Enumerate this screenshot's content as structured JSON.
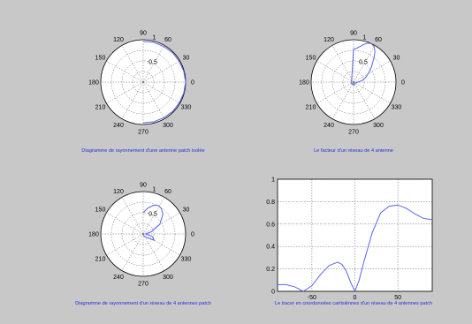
{
  "window": {
    "background": "#c8c8c8"
  },
  "colors": {
    "curve": "#5a64ee",
    "caption": "#1f2fd6",
    "grid": "#666666",
    "axes": "#000000"
  },
  "chart_data": [
    {
      "type": "polar",
      "title": "Diagramme de rayonnement d'une antenne patch isolée",
      "angle_ticks": [
        "0",
        "30",
        "60",
        "90",
        "120",
        "150",
        "180",
        "210",
        "240",
        "270",
        "300",
        "330"
      ],
      "radius_ticks": [
        "0.5",
        "1"
      ],
      "rlim": [
        0,
        1
      ],
      "series": [
        {
          "angles_deg": [
            -90,
            -75,
            -60,
            -45,
            -30,
            -15,
            0,
            15,
            30,
            45,
            60,
            75,
            90
          ],
          "r": [
            0.96,
            0.97,
            0.97,
            0.98,
            0.98,
            0.99,
            1.0,
            0.99,
            0.98,
            0.98,
            0.97,
            0.97,
            0.96
          ]
        }
      ]
    },
    {
      "type": "polar",
      "title": "Le facteur d'un réseau de 4 antenne",
      "angle_ticks": [
        "0",
        "30",
        "60",
        "90",
        "120",
        "150",
        "180",
        "210",
        "240",
        "270",
        "300",
        "330"
      ],
      "radius_ticks": [
        "0.5",
        "1"
      ],
      "rlim": [
        0,
        1
      ],
      "series": [
        {
          "angles_deg": [
            0,
            10,
            20,
            30,
            40,
            50,
            55,
            60,
            65,
            70,
            75,
            80,
            85,
            90,
            110,
            140,
            180,
            220,
            250,
            270,
            300,
            330,
            345,
            360
          ],
          "r": [
            0.1,
            0.2,
            0.3,
            0.4,
            0.55,
            0.75,
            0.88,
            0.97,
            1.0,
            0.98,
            0.92,
            0.85,
            0.8,
            0.78,
            0.12,
            0.06,
            0.05,
            0.06,
            0.04,
            0.08,
            0.05,
            0.04,
            0.06,
            0.1
          ]
        }
      ]
    },
    {
      "type": "polar",
      "title": "Diagramme de rayonnement d'un réseau de 4 antennes patch",
      "angle_ticks": [
        "0",
        "30",
        "60",
        "90",
        "120",
        "150",
        "180",
        "210",
        "240",
        "270",
        "300",
        "330"
      ],
      "radius_ticks": [
        "0.5",
        "1"
      ],
      "rlim": [
        0,
        1
      ],
      "series": [
        {
          "angles_deg": [
            -90,
            -60,
            -30,
            -15,
            0,
            15,
            30,
            45,
            55,
            62,
            70,
            80,
            90
          ],
          "r": [
            0.02,
            0.08,
            0.3,
            0.22,
            0.06,
            0.2,
            0.45,
            0.66,
            0.74,
            0.76,
            0.72,
            0.62,
            0.5
          ]
        }
      ]
    },
    {
      "type": "line",
      "title": "Le tracer en coordonnées cartisiènnes d'un réseau de 4 antennes patch",
      "xlim": [
        -90,
        90
      ],
      "ylim": [
        0,
        1
      ],
      "xticks": [
        "-50",
        "0",
        "50"
      ],
      "yticks": [
        "0",
        "0.2",
        "0.4",
        "0.6",
        "0.8",
        "1"
      ],
      "grid": true,
      "series": [
        {
          "x": [
            -90,
            -80,
            -70,
            -60,
            -50,
            -40,
            -30,
            -20,
            -15,
            -10,
            -5,
            0,
            5,
            10,
            20,
            30,
            40,
            50,
            60,
            70,
            80,
            90
          ],
          "y": [
            0.06,
            0.06,
            0.04,
            0.0,
            0.05,
            0.15,
            0.23,
            0.26,
            0.24,
            0.18,
            0.08,
            0.0,
            0.1,
            0.25,
            0.52,
            0.7,
            0.76,
            0.77,
            0.74,
            0.69,
            0.65,
            0.64
          ]
        }
      ]
    }
  ]
}
